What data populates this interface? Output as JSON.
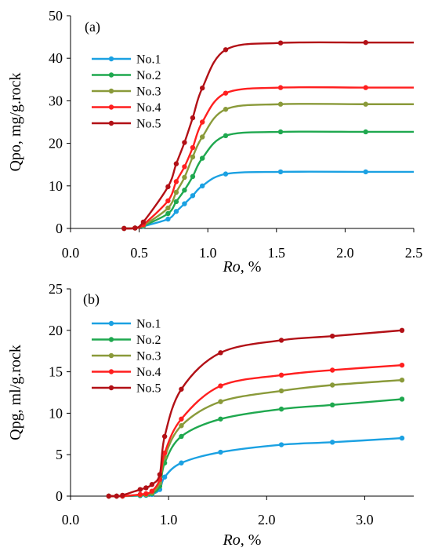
{
  "chart_data": [
    {
      "type": "line",
      "panel_label": "(a)",
      "xlabel_italic": "Ro",
      "xlabel_rest": ", %",
      "ylabel": "Qpo, mg/g.rock",
      "xlim": [
        0,
        2.5
      ],
      "ylim": [
        0,
        50
      ],
      "xticks": [
        0.0,
        0.5,
        1.0,
        1.5,
        2.0,
        2.5
      ],
      "xtick_labels": [
        "0.0",
        "0.5",
        "1.0",
        "1.5",
        "2.0",
        "2.5"
      ],
      "yticks": [
        0,
        10,
        20,
        30,
        40,
        50
      ],
      "ytick_labels": [
        "0",
        "10",
        "20",
        "30",
        "40",
        "50"
      ],
      "grid": false,
      "legend_position": "top-left",
      "series": [
        {
          "name": "No.1",
          "color": "#1BA1E2",
          "x": [
            0.39,
            0.47,
            0.53,
            0.71,
            0.77,
            0.83,
            0.89,
            0.96,
            1.13,
            1.53,
            2.15,
            2.5
          ],
          "y": [
            0,
            0.1,
            0.5,
            2.2,
            4.0,
            5.8,
            7.7,
            10.0,
            12.8,
            13.3,
            13.3,
            13.3
          ]
        },
        {
          "name": "No.2",
          "color": "#1FA84F",
          "x": [
            0.39,
            0.47,
            0.53,
            0.71,
            0.77,
            0.83,
            0.89,
            0.96,
            1.13,
            1.53,
            2.15,
            2.5
          ],
          "y": [
            0,
            0.1,
            0.6,
            3.5,
            6.3,
            9.0,
            12.2,
            16.5,
            21.8,
            22.7,
            22.7,
            22.7
          ]
        },
        {
          "name": "No.3",
          "color": "#8A9A3A",
          "x": [
            0.39,
            0.47,
            0.53,
            0.71,
            0.77,
            0.83,
            0.89,
            0.96,
            1.13,
            1.53,
            2.15,
            2.5
          ],
          "y": [
            0,
            0.1,
            0.7,
            4.8,
            8.5,
            12.0,
            16.8,
            21.5,
            28.0,
            29.2,
            29.2,
            29.2
          ]
        },
        {
          "name": "No.4",
          "color": "#FF1F1F",
          "x": [
            0.39,
            0.47,
            0.53,
            0.71,
            0.77,
            0.83,
            0.89,
            0.96,
            1.13,
            1.53,
            2.15,
            2.5
          ],
          "y": [
            0,
            0.1,
            0.9,
            6.5,
            11.0,
            14.5,
            19.0,
            25.0,
            31.8,
            33.1,
            33.1,
            33.1
          ]
        },
        {
          "name": "No.5",
          "color": "#B21016",
          "x": [
            0.39,
            0.47,
            0.53,
            0.71,
            0.77,
            0.83,
            0.89,
            0.96,
            1.13,
            1.53,
            2.15,
            2.5
          ],
          "y": [
            0,
            0.1,
            1.5,
            9.8,
            15.2,
            20.2,
            26.0,
            33.0,
            42.0,
            43.6,
            43.7,
            43.7
          ]
        }
      ]
    },
    {
      "type": "line",
      "panel_label": "(b)",
      "xlabel_italic": "Ro",
      "xlabel_rest": ", %",
      "ylabel": "Qpg, ml/g.rock",
      "xlim": [
        0,
        3.5
      ],
      "ylim": [
        0,
        25
      ],
      "xticks": [
        0.0,
        1.0,
        2.0,
        3.0
      ],
      "xtick_labels": [
        "0.0",
        "1.0",
        "2.0",
        "3.0"
      ],
      "yticks": [
        0,
        5,
        10,
        15,
        20,
        25
      ],
      "ytick_labels": [
        "0",
        "5",
        "10",
        "15",
        "20",
        "25"
      ],
      "grid": false,
      "legend_position": "top-left",
      "series": [
        {
          "name": "No.1",
          "color": "#1BA1E2",
          "x": [
            0.39,
            0.47,
            0.53,
            0.71,
            0.77,
            0.83,
            0.91,
            0.96,
            1.13,
            1.53,
            2.15,
            2.67,
            3.38
          ],
          "y": [
            0,
            0,
            0,
            0.05,
            0.1,
            0.2,
            0.8,
            2.3,
            4.0,
            5.3,
            6.2,
            6.5,
            7.0
          ]
        },
        {
          "name": "No.2",
          "color": "#1FA84F",
          "x": [
            0.39,
            0.47,
            0.53,
            0.71,
            0.77,
            0.83,
            0.91,
            0.96,
            1.13,
            1.53,
            2.15,
            2.67,
            3.38
          ],
          "y": [
            0,
            0,
            0,
            0.1,
            0.15,
            0.3,
            1.2,
            4.0,
            7.2,
            9.3,
            10.5,
            11.0,
            11.7
          ]
        },
        {
          "name": "No.3",
          "color": "#8A9A3A",
          "x": [
            0.39,
            0.47,
            0.53,
            0.71,
            0.77,
            0.83,
            0.91,
            0.96,
            1.13,
            1.53,
            2.15,
            2.67,
            3.38
          ],
          "y": [
            0,
            0,
            0,
            0.15,
            0.2,
            0.4,
            1.6,
            4.7,
            8.5,
            11.4,
            12.7,
            13.4,
            14.0
          ]
        },
        {
          "name": "No.4",
          "color": "#FF1F1F",
          "x": [
            0.39,
            0.47,
            0.53,
            0.71,
            0.77,
            0.83,
            0.91,
            0.96,
            1.13,
            1.53,
            2.15,
            2.67,
            3.38
          ],
          "y": [
            0,
            0,
            0,
            0.2,
            0.3,
            0.6,
            2.0,
            5.2,
            9.3,
            13.3,
            14.6,
            15.2,
            15.8
          ]
        },
        {
          "name": "No.5",
          "color": "#B21016",
          "x": [
            0.39,
            0.47,
            0.53,
            0.71,
            0.77,
            0.83,
            0.91,
            0.96,
            1.13,
            1.53,
            2.15,
            2.67,
            3.38
          ],
          "y": [
            0,
            0,
            0.1,
            0.8,
            1.0,
            1.4,
            2.6,
            7.2,
            12.9,
            17.3,
            18.8,
            19.3,
            20.0
          ]
        }
      ]
    }
  ]
}
